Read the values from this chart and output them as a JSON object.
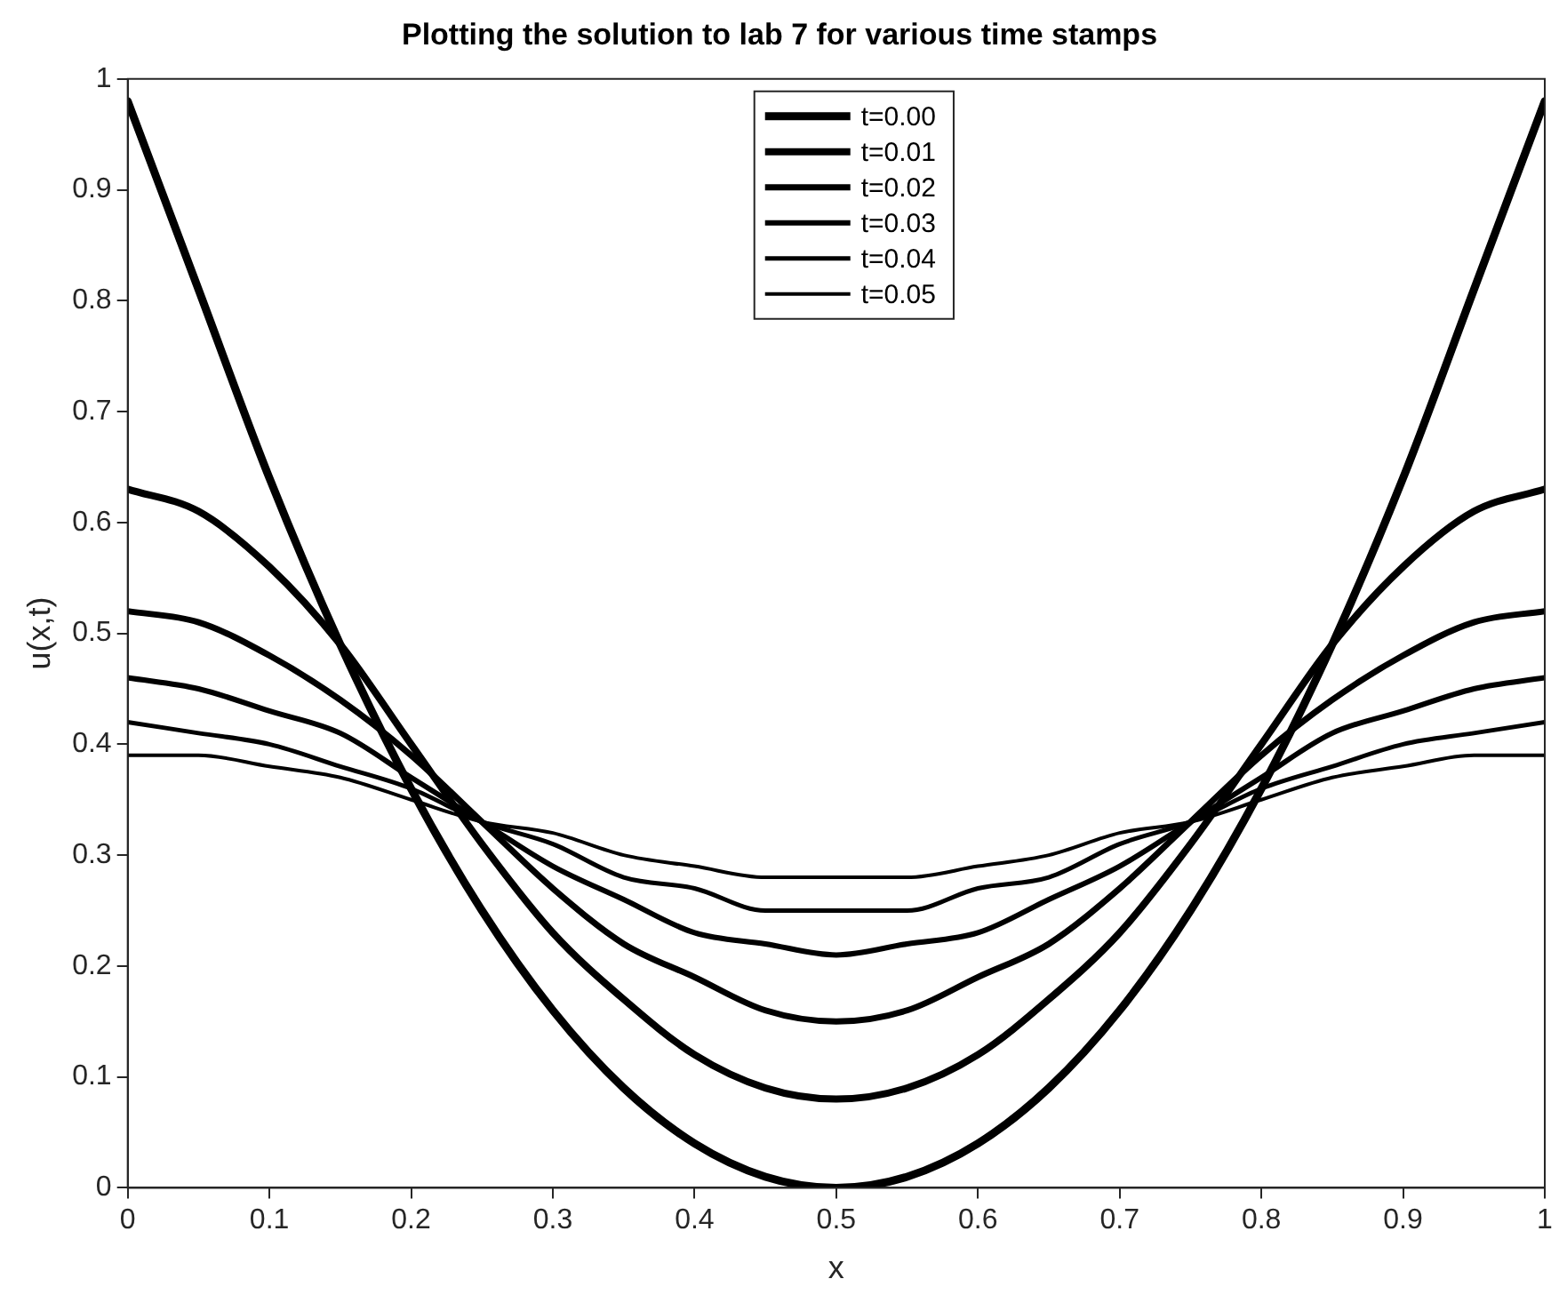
{
  "chart_data": {
    "type": "line",
    "title": "Plotting the solution to lab 7 for various time stamps",
    "xlabel": "x",
    "ylabel": "u(x,t)",
    "x": [
      0,
      0.05,
      0.1,
      0.15,
      0.2,
      0.25,
      0.3,
      0.35,
      0.4,
      0.45,
      0.5,
      0.55,
      0.6,
      0.65,
      0.7,
      0.75,
      0.8,
      0.85,
      0.9,
      0.95,
      1
    ],
    "series": [
      {
        "name": "t=0.00",
        "color": "#000000",
        "values": [
          0.98,
          0.81,
          0.64,
          0.49,
          0.36,
          0.25,
          0.16,
          0.09,
          0.04,
          0.01,
          0,
          0.01,
          0.04,
          0.09,
          0.16,
          0.25,
          0.36,
          0.49,
          0.64,
          0.81,
          0.98
        ]
      },
      {
        "name": "t=0.01",
        "color": "#000000",
        "values": [
          0.63,
          0.61,
          0.56,
          0.49,
          0.4,
          0.31,
          0.23,
          0.17,
          0.12,
          0.09,
          0.08,
          0.09,
          0.12,
          0.17,
          0.23,
          0.31,
          0.4,
          0.49,
          0.56,
          0.61,
          0.63
        ]
      },
      {
        "name": "t=0.02",
        "color": "#000000",
        "values": [
          0.52,
          0.51,
          0.48,
          0.44,
          0.39,
          0.33,
          0.27,
          0.22,
          0.19,
          0.16,
          0.15,
          0.16,
          0.19,
          0.22,
          0.27,
          0.33,
          0.39,
          0.44,
          0.48,
          0.51,
          0.52
        ]
      },
      {
        "name": "t=0.03",
        "color": "#000000",
        "values": [
          0.46,
          0.45,
          0.43,
          0.41,
          0.37,
          0.33,
          0.29,
          0.26,
          0.23,
          0.22,
          0.21,
          0.22,
          0.23,
          0.26,
          0.29,
          0.33,
          0.37,
          0.41,
          0.43,
          0.45,
          0.46
        ]
      },
      {
        "name": "t=0.04",
        "color": "#000000",
        "values": [
          0.42,
          0.41,
          0.4,
          0.38,
          0.36,
          0.33,
          0.31,
          0.28,
          0.27,
          0.25,
          0.25,
          0.25,
          0.27,
          0.28,
          0.31,
          0.33,
          0.36,
          0.38,
          0.4,
          0.41,
          0.42
        ]
      },
      {
        "name": "t=0.05",
        "color": "#000000",
        "values": [
          0.39,
          0.39,
          0.38,
          0.37,
          0.35,
          0.33,
          0.32,
          0.3,
          0.29,
          0.28,
          0.28,
          0.28,
          0.29,
          0.3,
          0.32,
          0.33,
          0.35,
          0.37,
          0.38,
          0.39,
          0.39
        ]
      }
    ],
    "xlim": [
      0,
      1
    ],
    "xticks": [
      0,
      0.1,
      0.2,
      0.3,
      0.4,
      0.5,
      0.6,
      0.7,
      0.8,
      0.9,
      1
    ],
    "ylim": [
      0,
      1
    ],
    "yticks": [
      0,
      0.1,
      0.2,
      0.3,
      0.4,
      0.5,
      0.6,
      0.7,
      0.8,
      0.9,
      1
    ],
    "grid": false,
    "legend": "top",
    "line_style": "solid",
    "marker": "none"
  }
}
